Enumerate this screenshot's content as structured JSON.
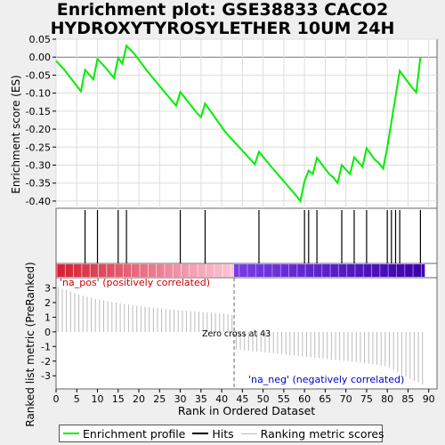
{
  "title_lines": [
    "Enrichment plot: GSE38833 CACO2",
    "HYDROXYTYROSYLETHER 10UM 24H"
  ],
  "chart_data": {
    "type": "line",
    "x_range": [
      0,
      92
    ],
    "x_ticks": [
      0,
      5,
      10,
      15,
      20,
      25,
      30,
      35,
      40,
      45,
      50,
      55,
      60,
      65,
      70,
      75,
      80,
      85,
      90
    ],
    "xlabel": "Rank in Ordered Dataset",
    "es_panel": {
      "ylabel": "Enrichment score (ES)",
      "ylim": [
        -0.42,
        0.05
      ],
      "y_ticks": [
        0.05,
        0.0,
        -0.05,
        -0.1,
        -0.15,
        -0.2,
        -0.25,
        -0.3,
        -0.35,
        -0.4
      ],
      "y_tick_labels": [
        "0.05",
        "0.00",
        "-0.05",
        "-0.10",
        "-0.15",
        "-0.20",
        "-0.25",
        "-0.30",
        "-0.35",
        "-0.40"
      ],
      "color": "#00ee00",
      "series": [
        {
          "name": "Enrichment profile",
          "points": [
            [
              0,
              -0.01
            ],
            [
              2,
              -0.035
            ],
            [
              4,
              -0.065
            ],
            [
              6,
              -0.095
            ],
            [
              7,
              -0.035
            ],
            [
              9,
              -0.062
            ],
            [
              10,
              -0.005
            ],
            [
              12,
              -0.03
            ],
            [
              14,
              -0.058
            ],
            [
              15,
              -0.002
            ],
            [
              16,
              -0.018
            ],
            [
              17,
              0.032
            ],
            [
              19,
              0.008
            ],
            [
              22,
              -0.038
            ],
            [
              25,
              -0.08
            ],
            [
              29,
              -0.135
            ],
            [
              30,
              -0.097
            ],
            [
              34,
              -0.155
            ],
            [
              35,
              -0.167
            ],
            [
              36,
              -0.129
            ],
            [
              41,
              -0.21
            ],
            [
              47,
              -0.285
            ],
            [
              48,
              -0.298
            ],
            [
              49,
              -0.263
            ],
            [
              52,
              -0.305
            ],
            [
              58,
              -0.385
            ],
            [
              59,
              -0.4
            ],
            [
              60,
              -0.345
            ],
            [
              61,
              -0.315
            ],
            [
              62,
              -0.325
            ],
            [
              63,
              -0.28
            ],
            [
              66,
              -0.325
            ],
            [
              67,
              -0.335
            ],
            [
              68,
              -0.35
            ],
            [
              69,
              -0.3
            ],
            [
              71,
              -0.325
            ],
            [
              72,
              -0.278
            ],
            [
              74,
              -0.305
            ],
            [
              75,
              -0.253
            ],
            [
              77,
              -0.285
            ],
            [
              78,
              -0.295
            ],
            [
              79,
              -0.31
            ],
            [
              80,
              -0.25
            ],
            [
              81,
              -0.18
            ],
            [
              83,
              -0.038
            ],
            [
              86,
              -0.085
            ],
            [
              87,
              -0.098
            ],
            [
              88,
              0.0
            ]
          ]
        }
      ]
    },
    "hits": [
      7,
      10,
      15,
      17,
      30,
      36,
      49,
      60,
      61,
      63,
      69,
      72,
      75,
      80,
      81,
      82,
      83,
      88
    ],
    "rank_metric_panel": {
      "ylabel": "Ranked list metric (PreRanked)",
      "ylim": [
        -3.9,
        3.7
      ],
      "y_ticks": [
        3,
        2,
        1,
        0,
        -1,
        -2,
        -3
      ],
      "y_tick_labels": [
        "3",
        "2",
        "1",
        "0",
        "-1",
        "-2",
        "-3"
      ],
      "values": [
        3.05,
        2.95,
        2.85,
        2.75,
        2.65,
        2.55,
        2.48,
        2.4,
        2.33,
        2.26,
        2.2,
        2.15,
        2.1,
        2.05,
        2.0,
        1.95,
        1.9,
        1.86,
        1.82,
        1.78,
        1.74,
        1.71,
        1.68,
        1.65,
        1.62,
        1.59,
        1.56,
        1.53,
        1.5,
        1.48,
        1.45,
        1.43,
        1.41,
        1.39,
        1.37,
        1.35,
        1.33,
        1.31,
        1.29,
        1.27,
        1.25,
        1.2,
        1.15,
        -1.2,
        -1.23,
        -1.26,
        -1.29,
        -1.32,
        -1.35,
        -1.38,
        -1.41,
        -1.44,
        -1.47,
        -1.5,
        -1.53,
        -1.56,
        -1.59,
        -1.62,
        -1.65,
        -1.68,
        -1.71,
        -1.74,
        -1.77,
        -1.8,
        -1.83,
        -1.86,
        -1.89,
        -1.92,
        -1.95,
        -1.98,
        -2.01,
        -2.04,
        -2.07,
        -2.1,
        -2.13,
        -2.17,
        -2.21,
        -2.25,
        -2.3,
        -2.35,
        -2.45,
        -2.6,
        -2.75,
        -2.9,
        -3.05,
        -3.2,
        -3.35,
        -3.45,
        -3.6
      ],
      "zero_cross_label": "Zero cross at 43",
      "zero_cross": 43,
      "pos_label": "'na_pos' (positively correlated)",
      "neg_label": "'na_neg' (negatively correlated)",
      "pos_color": "#cc0000",
      "neg_color": "#0000cc"
    },
    "heatmap_bar": {
      "n": 89,
      "zero_cross": 43
    }
  },
  "legend": {
    "items": [
      {
        "label": "Enrichment profile",
        "color": "#00ee00"
      },
      {
        "label": "Hits",
        "color": "#000000"
      },
      {
        "label": "Ranking metric scores",
        "color": "#bbbbbb"
      }
    ]
  }
}
